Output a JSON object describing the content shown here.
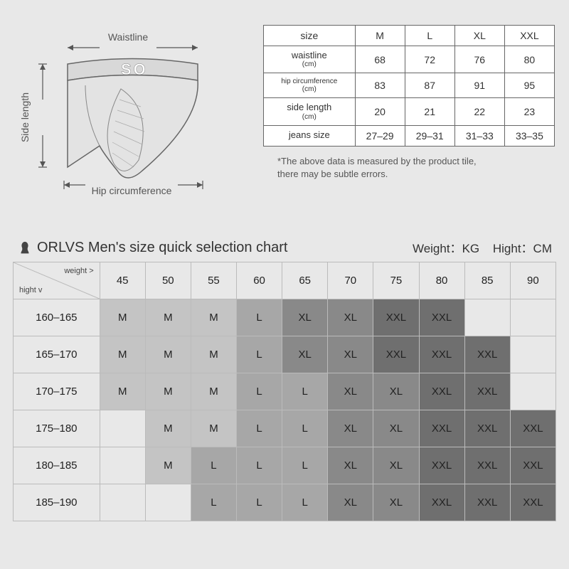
{
  "diagram": {
    "labels": {
      "waistline": "Waistline",
      "side_length": "Side length",
      "hip_circumference": "Hip circumference"
    },
    "band_text": "SO",
    "line_color": "#666666",
    "arrow_color": "#555555"
  },
  "size_table": {
    "header": [
      "size",
      "M",
      "L",
      "XL",
      "XXL"
    ],
    "rows": [
      {
        "label": "waistline",
        "sublabel": "(cm)",
        "values": [
          "68",
          "72",
          "76",
          "80"
        ]
      },
      {
        "label": "hip circumference",
        "sublabel": "(cm)",
        "values": [
          "83",
          "87",
          "91",
          "95"
        ]
      },
      {
        "label": "side length",
        "sublabel": "(cm)",
        "values": [
          "20",
          "21",
          "22",
          "23"
        ]
      },
      {
        "label": "jeans size",
        "sublabel": "",
        "values": [
          "27–29",
          "29–31",
          "31–33",
          "33–35"
        ]
      }
    ],
    "note_line1": "*The above data is measured by the product tile,",
    "note_line2": "there may be subtle errors."
  },
  "selection_chart": {
    "title": "ORLVS Men's size quick selection chart",
    "weight_label": "Weight：",
    "weight_unit": "KG",
    "height_label": "Hight：",
    "height_unit": "CM",
    "corner_weight": "weight >",
    "corner_height": "hight v",
    "weights": [
      "45",
      "50",
      "55",
      "60",
      "65",
      "70",
      "75",
      "80",
      "85",
      "90"
    ],
    "heights": [
      "160–165",
      "165–170",
      "170–175",
      "175–180",
      "180–185",
      "185–190"
    ],
    "grid": [
      [
        "M",
        "M",
        "M",
        "L",
        "XL",
        "XL",
        "XXL",
        "XXL",
        "",
        ""
      ],
      [
        "M",
        "M",
        "M",
        "L",
        "XL",
        "XL",
        "XXL",
        "XXL",
        "XXL",
        ""
      ],
      [
        "M",
        "M",
        "M",
        "L",
        "L",
        "XL",
        "XL",
        "XXL",
        "XXL",
        ""
      ],
      [
        "",
        "M",
        "M",
        "L",
        "L",
        "XL",
        "XL",
        "XXL",
        "XXL",
        "XXL"
      ],
      [
        "",
        "M",
        "L",
        "L",
        "L",
        "XL",
        "XL",
        "XXL",
        "XXL",
        "XXL"
      ],
      [
        "",
        "",
        "L",
        "L",
        "L",
        "XL",
        "XL",
        "XXL",
        "XXL",
        "XXL"
      ]
    ],
    "shade_colors": {
      "M": "#c4c4c4",
      "L": "#a7a7a7",
      "XL": "#898989",
      "XXL": "#6f6f6f",
      "empty": "#e8e8e8"
    }
  }
}
